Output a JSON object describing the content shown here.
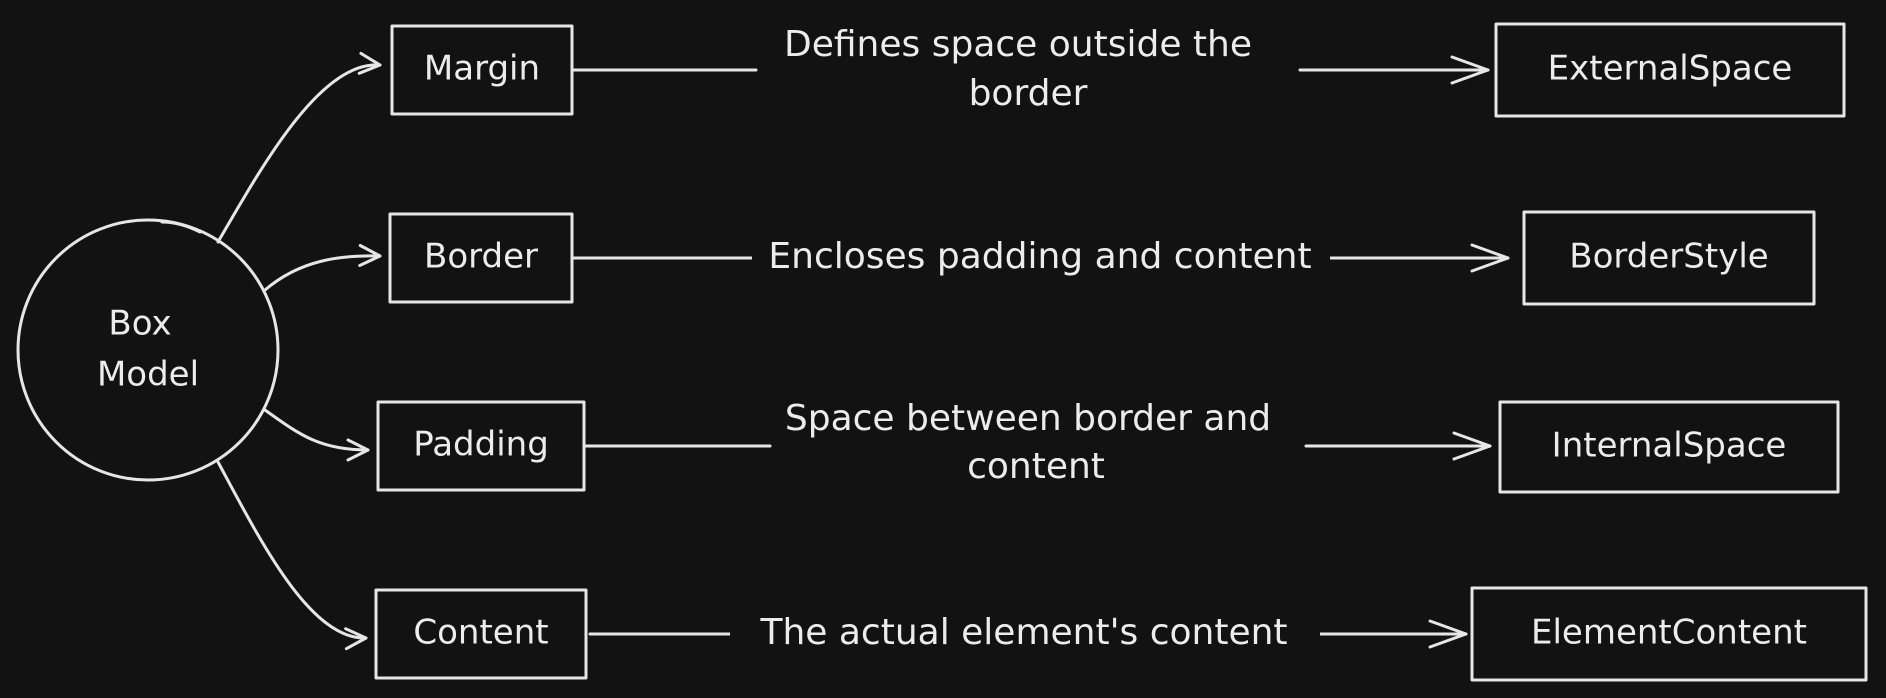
{
  "diagram": {
    "root": {
      "label_line1": "Box",
      "label_line2": "Model"
    },
    "nodes": [
      {
        "id": "margin",
        "label": "Margin"
      },
      {
        "id": "border",
        "label": "Border"
      },
      {
        "id": "padding",
        "label": "Padding"
      },
      {
        "id": "content",
        "label": "Content"
      }
    ],
    "results": [
      {
        "id": "external-space",
        "label": "ExternalSpace"
      },
      {
        "id": "border-style",
        "label": "BorderStyle"
      },
      {
        "id": "internal-space",
        "label": "InternalSpace"
      },
      {
        "id": "element-content",
        "label": "ElementContent"
      }
    ],
    "edges": [
      {
        "line1": "Defines space outside the",
        "line2": "border"
      },
      {
        "line1": "Encloses padding and content",
        "line2": ""
      },
      {
        "line1": "Space between border and",
        "line2": "content"
      },
      {
        "line1": "The actual element's content",
        "line2": ""
      }
    ]
  }
}
